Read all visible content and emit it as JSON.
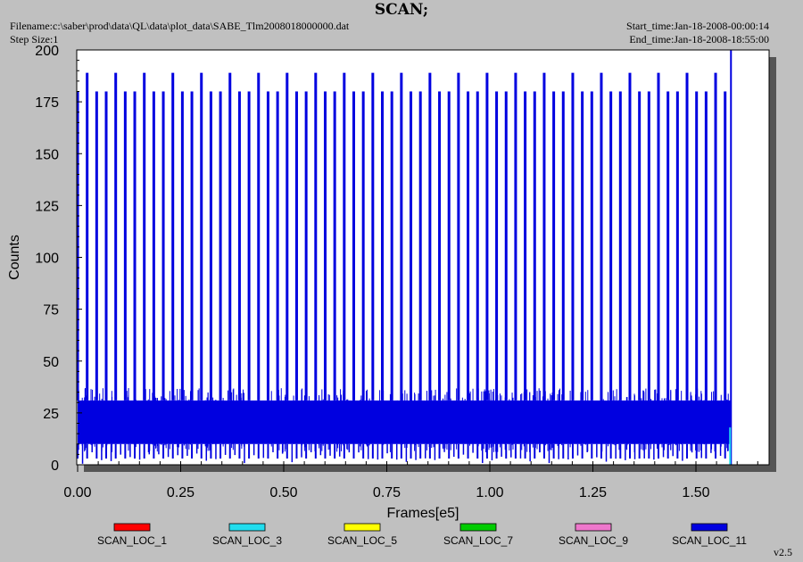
{
  "header": {
    "title": "SCAN;",
    "filename": "Filename:c:\\saber\\prod\\data\\QL\\data\\plot_data\\SABE_Tlm2008018000000.dat",
    "step_size": "Step Size:1",
    "start_time": "Start_time:Jan-18-2008-00:00:14",
    "end_time": "End_time:Jan-18-2008-18:55:00"
  },
  "version": "v2.5",
  "colors": {
    "background": "#c0c0c0",
    "plot_bg": "#ffffff",
    "shadow": "#555555",
    "SCAN_LOC_1": "#ff0000",
    "SCAN_LOC_3": "#22ddee",
    "SCAN_LOC_5": "#ffff00",
    "SCAN_LOC_7": "#00cc00",
    "SCAN_LOC_9": "#ee77cc",
    "SCAN_LOC_11": "#0000e0"
  },
  "chart_data": {
    "type": "line",
    "title": "SCAN;",
    "xlabel": "Frames[e5]",
    "ylabel": "Counts",
    "xlim": [
      0,
      1.67
    ],
    "ylim": [
      0,
      200
    ],
    "x_ticks": [
      "0.00",
      "0.25",
      "0.50",
      "0.75",
      "1.00",
      "1.25",
      "1.50"
    ],
    "y_ticks": [
      "0",
      "25",
      "50",
      "75",
      "100",
      "125",
      "150",
      "175",
      "200"
    ],
    "grid": false,
    "legend_position": "bottom",
    "data_end_x": 1.585,
    "band": {
      "series": "SCAN_LOC_11",
      "y_min": 10,
      "y_max": 31
    },
    "spike_heights": [
      180,
      189
    ],
    "spike_period": 0.0231,
    "series": [
      {
        "name": "SCAN_LOC_1"
      },
      {
        "name": "SCAN_LOC_3"
      },
      {
        "name": "SCAN_LOC_5"
      },
      {
        "name": "SCAN_LOC_7"
      },
      {
        "name": "SCAN_LOC_9"
      },
      {
        "name": "SCAN_LOC_11"
      }
    ]
  }
}
